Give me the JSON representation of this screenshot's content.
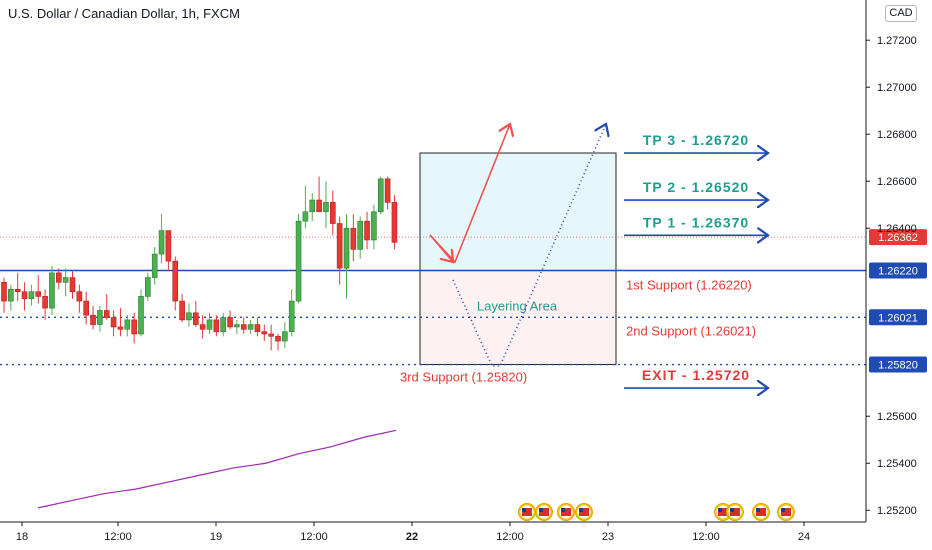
{
  "chart_title": "U.S. Dollar / Canadian Dollar, 1h, FXCM",
  "currency_badge": "CAD",
  "colors": {
    "up": "#26a69a",
    "up_body": "#4caf50",
    "down": "#ef5350",
    "down_body": "#e53935",
    "support_line": "#1e4bb4",
    "price_line": "#e53935",
    "ma": "#9c27b0",
    "tp_text": "#1f9e8f",
    "support_text": "#e53935",
    "arrow": "#1e4bb4",
    "tp_zone": "#e6f7fb",
    "layer_zone": "#fdf1f1"
  },
  "chart_data": {
    "type": "candlestick",
    "ylim": [
      1.2515,
      1.2732
    ],
    "x_tick_labels": [
      "18",
      "12:00",
      "19",
      "12:00",
      "22",
      "12:00",
      "23",
      "12:00",
      "24"
    ],
    "y_tick_labels": [
      "1.27200",
      "1.27000",
      "1.26800",
      "1.26600",
      "1.26400",
      "1.25600",
      "1.25400",
      "1.25200"
    ],
    "price_label": "1.26362",
    "price_value": 1.26362,
    "candles": [
      [
        1.2617,
        1.2619,
        1.2604,
        1.2609
      ],
      [
        1.2609,
        1.2616,
        1.2605,
        1.2614
      ],
      [
        1.2614,
        1.2621,
        1.2609,
        1.2613
      ],
      [
        1.2613,
        1.2617,
        1.2605,
        1.261
      ],
      [
        1.261,
        1.2616,
        1.2607,
        1.2613
      ],
      [
        1.2613,
        1.262,
        1.2608,
        1.2611
      ],
      [
        1.2611,
        1.2614,
        1.2601,
        1.2606
      ],
      [
        1.2606,
        1.2624,
        1.2603,
        1.2621
      ],
      [
        1.2621,
        1.2623,
        1.2614,
        1.2617
      ],
      [
        1.2617,
        1.2623,
        1.2611,
        1.2619
      ],
      [
        1.2619,
        1.2622,
        1.261,
        1.2613
      ],
      [
        1.2613,
        1.2616,
        1.2604,
        1.2609
      ],
      [
        1.2609,
        1.2613,
        1.2599,
        1.2603
      ],
      [
        1.2603,
        1.2607,
        1.2597,
        1.2599
      ],
      [
        1.2599,
        1.2607,
        1.2596,
        1.2605
      ],
      [
        1.2605,
        1.2612,
        1.2601,
        1.2602
      ],
      [
        1.2602,
        1.2605,
        1.2594,
        1.2598
      ],
      [
        1.2598,
        1.2606,
        1.2594,
        1.2597
      ],
      [
        1.2597,
        1.2603,
        1.2594,
        1.2601
      ],
      [
        1.2601,
        1.2604,
        1.2591,
        1.2595
      ],
      [
        1.2595,
        1.2614,
        1.2594,
        1.2611
      ],
      [
        1.2611,
        1.2621,
        1.2609,
        1.2619
      ],
      [
        1.2619,
        1.2632,
        1.2616,
        1.2629
      ],
      [
        1.2629,
        1.2646,
        1.2625,
        1.2639
      ],
      [
        1.2639,
        1.2637,
        1.2622,
        1.2626
      ],
      [
        1.2626,
        1.2628,
        1.2605,
        1.2609
      ],
      [
        1.2609,
        1.2612,
        1.26,
        1.2601
      ],
      [
        1.2601,
        1.2608,
        1.2598,
        1.2604
      ],
      [
        1.2604,
        1.2609,
        1.2598,
        1.2599
      ],
      [
        1.2599,
        1.2603,
        1.2593,
        1.2597
      ],
      [
        1.2597,
        1.2604,
        1.2595,
        1.2601
      ],
      [
        1.2601,
        1.2603,
        1.2594,
        1.2596
      ],
      [
        1.2596,
        1.2604,
        1.2594,
        1.2602
      ],
      [
        1.2602,
        1.2605,
        1.2597,
        1.2598
      ],
      [
        1.2598,
        1.2601,
        1.2595,
        1.2599
      ],
      [
        1.2599,
        1.2602,
        1.2595,
        1.2597
      ],
      [
        1.2597,
        1.2601,
        1.2595,
        1.2599
      ],
      [
        1.2599,
        1.2602,
        1.2594,
        1.2596
      ],
      [
        1.2596,
        1.2599,
        1.2592,
        1.2595
      ],
      [
        1.2595,
        1.2599,
        1.2588,
        1.2594
      ],
      [
        1.2594,
        1.2595,
        1.2588,
        1.2592
      ],
      [
        1.2592,
        1.26,
        1.2589,
        1.2596
      ],
      [
        1.2596,
        1.2614,
        1.2594,
        1.2609
      ],
      [
        1.2609,
        1.2646,
        1.2608,
        1.2643
      ],
      [
        1.2643,
        1.2658,
        1.264,
        1.2647
      ],
      [
        1.2647,
        1.2655,
        1.2643,
        1.2652
      ],
      [
        1.2652,
        1.2662,
        1.2648,
        1.2647
      ],
      [
        1.2647,
        1.266,
        1.264,
        1.2651
      ],
      [
        1.2651,
        1.2656,
        1.2637,
        1.2642
      ],
      [
        1.2642,
        1.2645,
        1.2616,
        1.2623
      ],
      [
        1.2623,
        1.2646,
        1.261,
        1.264
      ],
      [
        1.264,
        1.2646,
        1.2626,
        1.2631
      ],
      [
        1.2631,
        1.2645,
        1.2627,
        1.2643
      ],
      [
        1.2643,
        1.2647,
        1.2631,
        1.2635
      ],
      [
        1.2635,
        1.265,
        1.2631,
        1.2647
      ],
      [
        1.2647,
        1.2662,
        1.2646,
        1.2661
      ],
      [
        1.2661,
        1.2662,
        1.2648,
        1.2651
      ],
      [
        1.2651,
        1.2654,
        1.2631,
        1.2634
      ]
    ],
    "moving_average": [
      [
        1.2521,
        1.2524,
        1.2527,
        1.2529,
        1.2532,
        1.2535,
        1.2538,
        1.254,
        1.2544,
        1.2547,
        1.2551,
        1.2554
      ]
    ],
    "levels": [
      {
        "label": "1.26220",
        "value": 1.2622,
        "style": "solid"
      },
      {
        "label": "1.26021",
        "value": 1.26021,
        "style": "dotted"
      },
      {
        "label": "1.25820",
        "value": 1.2582,
        "style": "dotted"
      }
    ],
    "targets": [
      {
        "label": "TP 3 - 1.26720",
        "value": 1.2672
      },
      {
        "label": "TP 2 - 1.26520",
        "value": 1.2652
      },
      {
        "label": "TP 1 - 1.26370",
        "value": 1.2637
      },
      {
        "label": "EXIT - 1.25720",
        "value": 1.2572
      }
    ],
    "supports": [
      {
        "label": "1st Support (1.26220)",
        "value": 1.2622
      },
      {
        "label": "2nd Support (1.26021)",
        "value": 1.26021
      },
      {
        "label": "3rd Support (1.25820)",
        "value": 1.2582
      }
    ],
    "zones": {
      "take_profit": [
        1.2622,
        1.2672
      ],
      "layering": [
        1.2582,
        1.2622
      ],
      "layering_label": "Layering Area"
    },
    "event_markers": {
      "count_a": 4,
      "count_b": 4
    }
  }
}
